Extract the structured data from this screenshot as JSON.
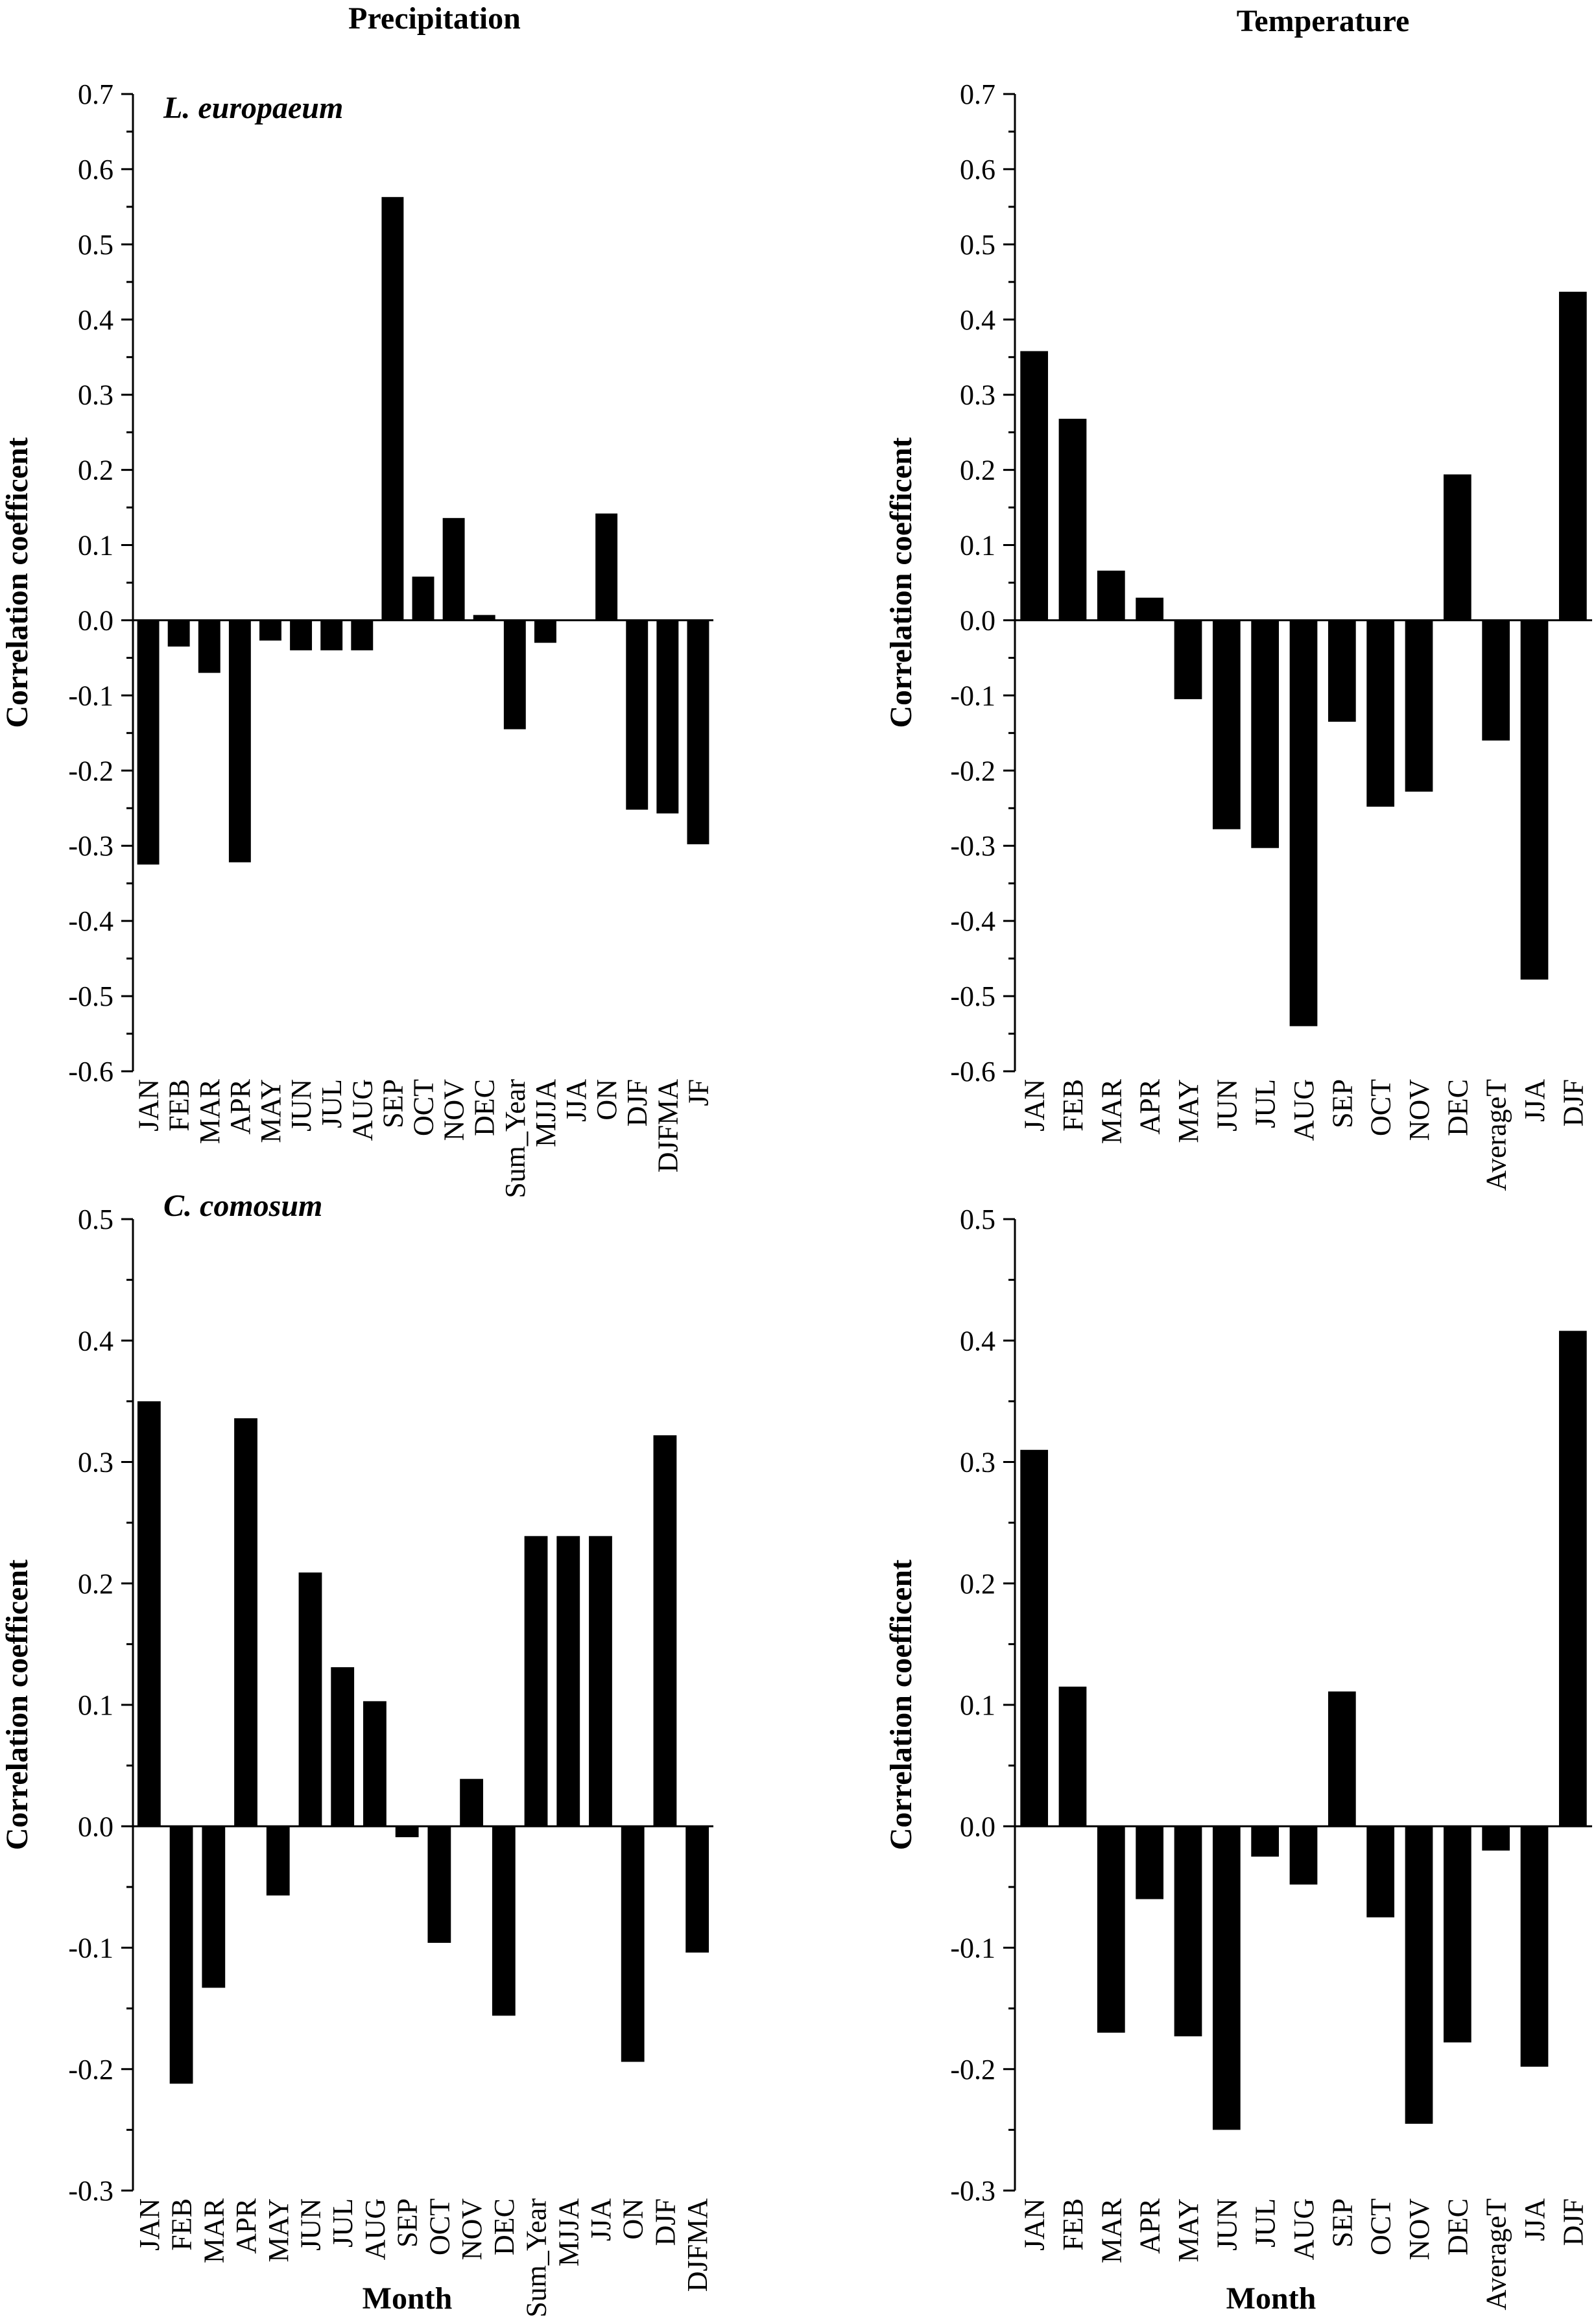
{
  "column_titles": [
    "Precipitation",
    "Temperature"
  ],
  "chart_data": [
    {
      "type": "bar",
      "panel_label": "L. europaeum",
      "ylabel": "Correlation coefficent",
      "xlabel": "",
      "ylim": [
        -0.6,
        0.7
      ],
      "yticks": [
        "0.7",
        "0.6",
        "0.5",
        "0.4",
        "0.3",
        "0.2",
        "0.1",
        "0.0",
        "-0.1",
        "-0.2",
        "-0.3",
        "-0.4",
        "-0.5",
        "-0.6"
      ],
      "categories": [
        "JAN",
        "FEB",
        "MAR",
        "APR",
        "MAY",
        "JUN",
        "JUL",
        "AUG",
        "SEP",
        "OCT",
        "NOV",
        "DEC",
        "Sum_Year",
        "MJJA",
        "JJA",
        "ON",
        "DJF",
        "DJFMA",
        "JF"
      ],
      "values": [
        -0.325,
        -0.035,
        -0.07,
        -0.322,
        -0.027,
        -0.04,
        -0.04,
        -0.04,
        0.563,
        0.058,
        0.136,
        0.007,
        -0.145,
        -0.03,
        0.0,
        0.142,
        -0.252,
        -0.257,
        -0.298
      ]
    },
    {
      "type": "bar",
      "panel_label": "",
      "ylabel": "Correlation coefficent",
      "xlabel": "",
      "ylim": [
        -0.6,
        0.7
      ],
      "yticks": [
        "0.7",
        "0.6",
        "0.5",
        "0.4",
        "0.3",
        "0.2",
        "0.1",
        "0.0",
        "-0.1",
        "-0.2",
        "-0.3",
        "-0.4",
        "-0.5",
        "-0.6"
      ],
      "categories": [
        "JAN",
        "FEB",
        "MAR",
        "APR",
        "MAY",
        "JUN",
        "JUL",
        "AUG",
        "SEP",
        "OCT",
        "NOV",
        "DEC",
        "AverageT",
        "JJA",
        "DJF"
      ],
      "values": [
        0.358,
        0.268,
        0.066,
        0.03,
        -0.105,
        -0.278,
        -0.303,
        -0.54,
        -0.135,
        -0.248,
        -0.228,
        0.194,
        -0.16,
        -0.478,
        0.437
      ]
    },
    {
      "type": "bar",
      "panel_label": "C. comosum",
      "ylabel": "Correlation coefficent",
      "xlabel": "Month",
      "ylim": [
        -0.3,
        0.5
      ],
      "yticks": [
        "0.5",
        "0.4",
        "0.3",
        "0.2",
        "0.1",
        "0.0",
        "-0.1",
        "-0.2",
        "-0.3"
      ],
      "categories": [
        "JAN",
        "FEB",
        "MAR",
        "APR",
        "MAY",
        "JUN",
        "JUL",
        "AUG",
        "SEP",
        "OCT",
        "NOV",
        "DEC",
        "Sum_Year",
        "MJJA",
        "JJA",
        "ON",
        "DJF",
        "DJFMA"
      ],
      "values": [
        0.35,
        -0.212,
        -0.133,
        0.336,
        -0.057,
        0.209,
        0.131,
        0.103,
        -0.009,
        -0.096,
        0.039,
        -0.156,
        0.239,
        0.239,
        0.239,
        -0.194,
        0.322,
        -0.104
      ]
    },
    {
      "type": "bar",
      "panel_label": "",
      "ylabel": "Correlation coefficent",
      "xlabel": "Month",
      "ylim": [
        -0.3,
        0.5
      ],
      "yticks": [
        "0.5",
        "0.4",
        "0.3",
        "0.2",
        "0.1",
        "0.0",
        "-0.1",
        "-0.2",
        "-0.3"
      ],
      "categories": [
        "JAN",
        "FEB",
        "MAR",
        "APR",
        "MAY",
        "JUN",
        "JUL",
        "AUG",
        "SEP",
        "OCT",
        "NOV",
        "DEC",
        "AverageT",
        "JJA",
        "DJF"
      ],
      "values": [
        0.31,
        0.115,
        -0.17,
        -0.06,
        -0.173,
        -0.25,
        -0.025,
        -0.048,
        0.111,
        -0.075,
        -0.245,
        -0.178,
        -0.02,
        -0.198,
        0.408
      ]
    }
  ]
}
